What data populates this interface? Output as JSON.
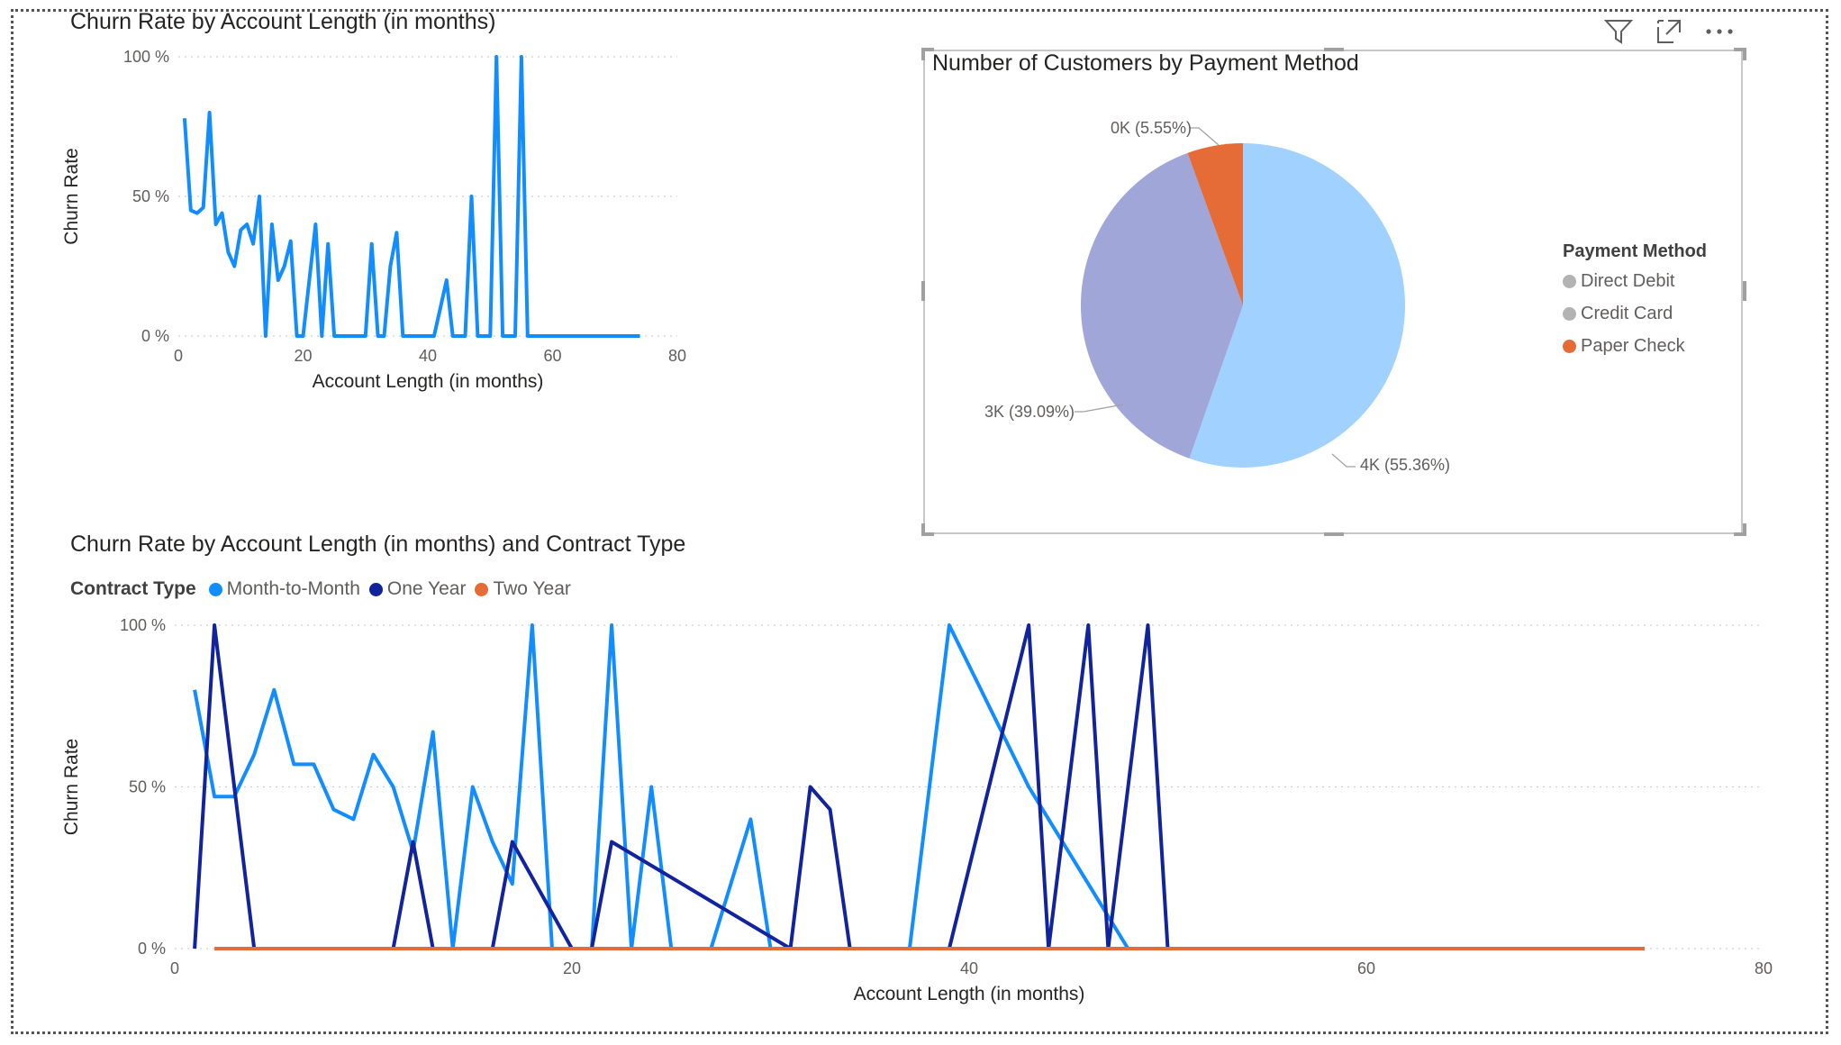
{
  "visual_header": {
    "icons": [
      "filter-icon",
      "focus-mode-icon",
      "more-options-icon"
    ]
  },
  "chart_data": [
    {
      "type": "line",
      "title": "Churn Rate by Account Length (in months)",
      "xlabel": "Account Length (in months)",
      "ylabel": "Churn Rate",
      "xlim": [
        0,
        80
      ],
      "ylim": [
        0,
        100
      ],
      "x_ticks": [
        "0",
        "20",
        "40",
        "60",
        "80"
      ],
      "y_ticks": [
        "0 %",
        "50 %",
        "100 %"
      ],
      "grid": true,
      "series": [
        {
          "color": "#118dff",
          "x": [
            1,
            2,
            3,
            4,
            5,
            6,
            7,
            8,
            9,
            10,
            11,
            12,
            13,
            14,
            15,
            16,
            17,
            18,
            19,
            20,
            21,
            22,
            23,
            24,
            25,
            26,
            27,
            28,
            29,
            30,
            31,
            32,
            33,
            34,
            35,
            36,
            37,
            38,
            39,
            40,
            41,
            42,
            43,
            44,
            45,
            46,
            47,
            48,
            49,
            50,
            51,
            52,
            53,
            54,
            55,
            56,
            57,
            58,
            59,
            60,
            61,
            62,
            63,
            64,
            65,
            66,
            67,
            68,
            69,
            70,
            71,
            72,
            73,
            74
          ],
          "y": [
            78,
            45,
            44,
            46,
            80,
            40,
            44,
            30,
            25,
            38,
            40,
            33,
            50,
            0,
            40,
            20,
            25,
            34,
            0,
            0,
            20,
            40,
            0,
            33,
            0,
            0,
            0,
            0,
            0,
            0,
            33,
            0,
            0,
            25,
            37,
            0,
            0,
            0,
            0,
            0,
            0,
            10,
            20,
            0,
            0,
            0,
            50,
            0,
            0,
            0,
            100,
            0,
            0,
            0,
            100,
            0,
            0,
            0,
            0,
            0,
            0,
            0,
            0,
            0,
            0,
            0,
            0,
            0,
            0,
            0,
            0,
            0,
            0,
            0
          ]
        }
      ]
    },
    {
      "type": "pie",
      "title": "Number of Customers by Payment Method",
      "legend_title": "Payment Method",
      "legend": "right",
      "slices": [
        {
          "name": "Direct Debit",
          "value": 55.36,
          "label": "4K (55.36%)",
          "color": "#a0d1ff",
          "legend_color": "#b3b3b3"
        },
        {
          "name": "Credit Card",
          "value": 39.09,
          "label": "3K (39.09%)",
          "color": "#a1a6d8",
          "legend_color": "#b3b3b3"
        },
        {
          "name": "Paper Check",
          "value": 5.55,
          "label": "0K (5.55%)",
          "color": "#e66c37",
          "legend_color": "#e66c37"
        }
      ]
    },
    {
      "type": "line",
      "title": "Churn Rate by Account Length (in months) and Contract Type",
      "legend_title": "Contract Type",
      "legend": "top-left",
      "xlabel": "Account Length (in months)",
      "ylabel": "Churn Rate",
      "xlim": [
        0,
        80
      ],
      "ylim": [
        0,
        100
      ],
      "x_ticks": [
        "0",
        "20",
        "40",
        "60",
        "80"
      ],
      "y_ticks": [
        "0 %",
        "50 %",
        "100 %"
      ],
      "grid": true,
      "series": [
        {
          "name": "Month-to-Month",
          "color": "#118dff",
          "x": [
            1,
            2,
            3,
            4,
            5,
            6,
            7,
            8,
            9,
            10,
            11,
            12,
            13,
            14,
            15,
            16,
            17,
            18,
            19,
            20,
            21,
            22,
            23,
            24,
            25,
            27,
            29,
            30,
            31,
            37,
            39,
            43,
            48
          ],
          "y": [
            80,
            47,
            47,
            60,
            80,
            57,
            57,
            43,
            40,
            60,
            50,
            30,
            67,
            0,
            50,
            33,
            20,
            100,
            0,
            0,
            0,
            100,
            0,
            50,
            0,
            0,
            40,
            0,
            0,
            0,
            100,
            50,
            0
          ]
        },
        {
          "name": "One Year",
          "color": "#12239e",
          "x": [
            1,
            2,
            4,
            11,
            12,
            13,
            15,
            16,
            17,
            20,
            21,
            22,
            31,
            32,
            33,
            34,
            36,
            39,
            43,
            44,
            46,
            47,
            49,
            50,
            60,
            74
          ],
          "y": [
            0,
            100,
            0,
            0,
            33,
            0,
            0,
            0,
            33,
            0,
            0,
            33,
            0,
            50,
            43,
            0,
            0,
            0,
            100,
            0,
            100,
            0,
            100,
            0,
            0,
            0
          ]
        },
        {
          "name": "Two Year",
          "color": "#e66c37",
          "x": [
            2,
            74
          ],
          "y": [
            0,
            0
          ]
        }
      ]
    }
  ]
}
